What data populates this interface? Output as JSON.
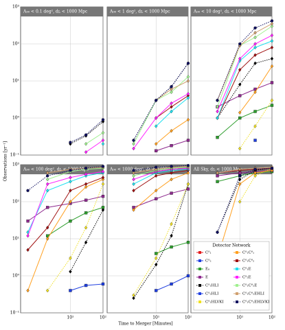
{
  "chart_data": {
    "type": "line",
    "xlabel": "Time to Merger [Minutes]",
    "ylabel": "Observations [yr⁻¹]",
    "legend_title": "Detector Network",
    "log_x": true,
    "log_y": true,
    "grid": true,
    "x": [
      0.5,
      2,
      10,
      30,
      100
    ],
    "xlim": [
      0.3,
      100
    ],
    "xticks": [
      {
        "value": 10,
        "label": "10¹"
      },
      {
        "value": 100,
        "label": "10²"
      }
    ],
    "ylim": [
      0.1,
      1000
    ],
    "yticks": [
      {
        "value": 0.1,
        "label": "10⁻¹"
      },
      {
        "value": 1,
        "label": "10⁰"
      },
      {
        "value": 10,
        "label": "10¹"
      },
      {
        "value": 100,
        "label": "10²"
      },
      {
        "value": 1000,
        "label": "10³"
      }
    ],
    "series": [
      {
        "name": "C⁰₁",
        "color": "#e41a1c",
        "marker": "square",
        "dashed": false
      },
      {
        "name": "C⁰₂",
        "color": "#1f3fe0",
        "marker": "square",
        "dashed": false
      },
      {
        "name": "E₀",
        "color": "#2e9e2e",
        "marker": "square",
        "dashed": false
      },
      {
        "name": "E",
        "color": "#8e2a8e",
        "marker": "square",
        "dashed": false
      },
      {
        "name": "C⁰₁HLI",
        "color": "#000000",
        "marker": "diamond",
        "dashed": true
      },
      {
        "name": "C⁰₂HLI",
        "color": "#1f3fe0",
        "marker": "diamond",
        "dashed": false
      },
      {
        "name": "C⁰₁HLVKI",
        "color": "#f0e020",
        "marker": "diamond",
        "dashed": true
      },
      {
        "name": "C⁰₁C⁰₁",
        "color": "#ffa020",
        "marker": "diamond",
        "dashed": false
      },
      {
        "name": "C⁰₁C⁰₂",
        "color": "#a01010",
        "marker": "diamond",
        "dashed": false
      },
      {
        "name": "C⁰₁E",
        "color": "#20e0f0",
        "marker": "diamond",
        "dashed": false
      },
      {
        "name": "C⁰₂E",
        "color": "#ff20ff",
        "marker": "diamond",
        "dashed": false
      },
      {
        "name": "C⁰₁C⁰₂E",
        "color": "#a0f090",
        "marker": "diamond",
        "dashed": false
      },
      {
        "name": "C⁰₁C⁰₂EHLI",
        "color": "#d0a070",
        "marker": "diamond",
        "dashed": false
      },
      {
        "name": "C⁰₁C⁰₂EHLVKI",
        "color": "#101060",
        "marker": "circle",
        "dashed": true
      }
    ],
    "panels": [
      {
        "title": "A₉₀ < 0.1 deg², dʟ < 1000 Mpc",
        "values": [
          [
            null,
            null,
            null,
            null,
            null
          ],
          [
            null,
            null,
            null,
            null,
            null
          ],
          [
            null,
            null,
            null,
            null,
            null
          ],
          [
            null,
            null,
            null,
            null,
            null
          ],
          [
            null,
            null,
            0.2,
            0.33,
            0.8
          ],
          [
            null,
            null,
            null,
            null,
            null
          ],
          [
            null,
            null,
            null,
            null,
            null
          ],
          [
            null,
            null,
            null,
            null,
            null
          ],
          [
            null,
            null,
            null,
            null,
            null
          ],
          [
            null,
            null,
            null,
            null,
            0.2
          ],
          [
            null,
            null,
            null,
            0.12,
            0.25
          ],
          [
            null,
            null,
            null,
            0.2,
            0.4
          ],
          [
            null,
            null,
            null,
            null,
            null
          ],
          [
            null,
            null,
            0.22,
            0.35,
            0.9
          ]
        ]
      },
      {
        "title": "A₉₀ < 1 deg², dʟ < 1000 Mpc",
        "values": [
          [
            null,
            null,
            null,
            null,
            null
          ],
          [
            null,
            null,
            null,
            null,
            null
          ],
          [
            null,
            null,
            null,
            null,
            null
          ],
          [
            null,
            null,
            0.13,
            0.18,
            0.25
          ],
          [
            null,
            0.25,
            3,
            7,
            30
          ],
          [
            null,
            null,
            null,
            null,
            null
          ],
          [
            null,
            null,
            null,
            null,
            null
          ],
          [
            null,
            null,
            0.2,
            0.45,
            0.9
          ],
          [
            null,
            null,
            1,
            2,
            4
          ],
          [
            null,
            null,
            0.6,
            1.5,
            3.5
          ],
          [
            null,
            0.15,
            1,
            2.5,
            4.5
          ],
          [
            null,
            0.2,
            3,
            5,
            13
          ],
          [
            null,
            null,
            3,
            6,
            10
          ],
          [
            null,
            0.25,
            3,
            7,
            30
          ]
        ]
      },
      {
        "title": "A₉₀ < 10 deg², dʟ < 1000 Mpc",
        "values": [
          [
            null,
            null,
            null,
            null,
            null
          ],
          [
            null,
            null,
            null,
            0.25,
            null
          ],
          [
            null,
            0.3,
            1,
            1.5,
            2.2
          ],
          [
            null,
            2,
            4,
            6,
            9
          ],
          [
            null,
            1,
            8,
            30,
            40
          ],
          [
            null,
            null,
            null,
            null,
            null
          ],
          [
            null,
            null,
            0.15,
            0.6,
            3
          ],
          [
            null,
            null,
            1.4,
            5,
            25
          ],
          [
            null,
            1,
            20,
            50,
            80
          ],
          [
            null,
            1,
            35,
            80,
            120
          ],
          [
            null,
            1.5,
            40,
            100,
            170
          ],
          [
            null,
            2,
            90,
            150,
            300
          ],
          [
            null,
            3,
            90,
            200,
            350
          ],
          [
            null,
            3,
            100,
            270,
            420
          ]
        ]
      },
      {
        "title": "A₉₀ < 100 deg², dʟ < 1000 Mpc",
        "values": [
          [
            null,
            null,
            null,
            null,
            null
          ],
          [
            null,
            null,
            0.4,
            0.55,
            0.6
          ],
          [
            null,
            12,
            30,
            50,
            70
          ],
          [
            30,
            70,
            90,
            110,
            140
          ],
          [
            null,
            null,
            1.3,
            8,
            60
          ],
          [
            null,
            null,
            null,
            null,
            null
          ],
          [
            null,
            0.4,
            3,
            20,
            300
          ],
          [
            0.4,
            10,
            100,
            250,
            400
          ],
          [
            5,
            20,
            200,
            300,
            450
          ],
          [
            15,
            200,
            350,
            500,
            600
          ],
          [
            12,
            300,
            450,
            550,
            650
          ],
          [
            null,
            400,
            650,
            750,
            800
          ],
          [
            null,
            600,
            750,
            800,
            850
          ],
          [
            200,
            500,
            700,
            800,
            900
          ]
        ]
      },
      {
        "title": "A₉₀ < 1000 deg², dʟ < 1000 Mpc",
        "values": [
          [
            null,
            null,
            null,
            null,
            null
          ],
          [
            null,
            null,
            0.4,
            0.6,
            1
          ],
          [
            null,
            null,
            4,
            6,
            8
          ],
          [
            null,
            70,
            120,
            170,
            220
          ],
          [
            null,
            0.25,
            2,
            12,
            300
          ],
          [
            null,
            null,
            null,
            null,
            null
          ],
          [
            null,
            0.3,
            3,
            25,
            300
          ],
          [
            null,
            60,
            200,
            400,
            600
          ],
          [
            null,
            200,
            500,
            600,
            700
          ],
          [
            null,
            300,
            600,
            700,
            750
          ],
          [
            null,
            400,
            650,
            750,
            800
          ],
          [
            null,
            500,
            700,
            800,
            850
          ],
          [
            null,
            600,
            750,
            850,
            900
          ],
          [
            null,
            700,
            850,
            900,
            950
          ]
        ]
      },
      {
        "title": "All Sky, dʟ < 1000 Mpc",
        "values": [
          [
            null,
            null,
            null,
            null,
            null
          ],
          [
            null,
            null,
            null,
            null,
            null
          ],
          [
            null,
            350,
            500,
            600,
            650
          ],
          [
            null,
            500,
            600,
            650,
            700
          ],
          [
            null,
            15,
            400,
            700,
            800
          ],
          [
            null,
            null,
            null,
            null,
            null
          ],
          [
            null,
            null,
            100,
            500,
            800
          ],
          [
            null,
            3,
            300,
            600,
            700
          ],
          [
            null,
            600,
            700,
            750,
            800
          ],
          [
            null,
            600,
            750,
            800,
            850
          ],
          [
            null,
            600,
            750,
            800,
            850
          ],
          [
            null,
            600,
            750,
            800,
            850
          ],
          [
            null,
            600,
            750,
            800,
            850
          ],
          [
            null,
            15,
            500,
            750,
            800
          ]
        ]
      }
    ]
  }
}
